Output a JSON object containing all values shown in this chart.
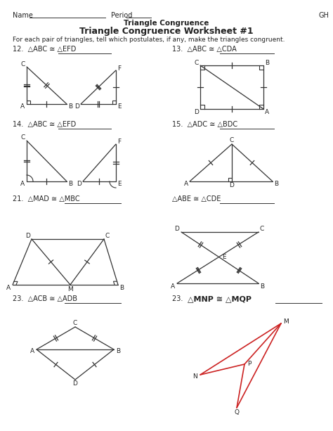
{
  "title1": "Triangle Congruence",
  "title2": "Triangle Congruence Worksheet #1",
  "instruction": "For each pair of triangles, tell which postulates, if any, make the triangles congruent.",
  "name_label": "Name",
  "period_label": "Period",
  "gh_label": "GH",
  "bg_color": "#ffffff",
  "line_color": "#333333",
  "font_color": "#222222",
  "figsize": [
    4.74,
    6.13
  ],
  "dpi": 100
}
